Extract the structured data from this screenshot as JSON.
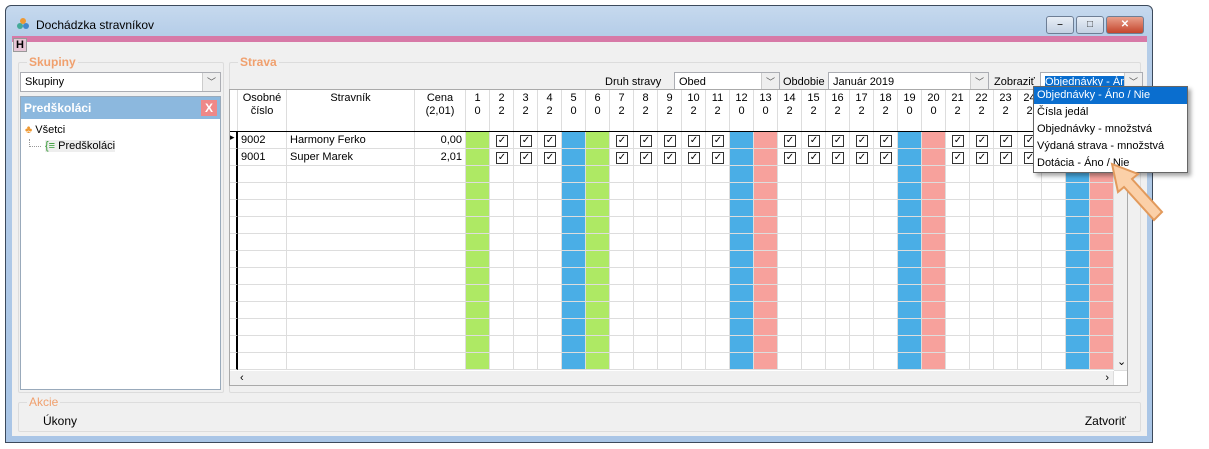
{
  "window": {
    "title": "Dochádzka stravníkov",
    "minimize": "–",
    "maximize": "□",
    "close": "✕"
  },
  "toolbar": {
    "h_button": "H"
  },
  "skupiny": {
    "legend": "Skupiny",
    "combo_value": "Skupiny",
    "panel_title": "Predškoláci",
    "panel_close": "X",
    "tree": [
      {
        "label": "Všetci",
        "icon": "group-icon"
      },
      {
        "label": "Predškoláci",
        "icon": "list-icon"
      }
    ]
  },
  "strava": {
    "legend": "Strava",
    "druh_label": "Druh stravy",
    "druh_value": "Obed",
    "obdobie_label": "Obdobie",
    "obdobie_value": "Január 2019",
    "zobrazit_label": "Zobraziť",
    "zobrazit_value": "Objednávky - Áno / Nie"
  },
  "dropdown": {
    "options": [
      "Objednávky - Áno / Nie",
      "Čísla jedál",
      "Objednávky - množstvá",
      "Výdaná strava - množstvá",
      "Dotácia - Áno / Nie"
    ],
    "selected": 0
  },
  "grid": {
    "headers": {
      "osobne": "Osobné\nčíslo",
      "stravnik": "Stravník",
      "cena": "Cena\n(2,01)"
    },
    "days": [
      {
        "d": "1",
        "n": "0",
        "c": "green"
      },
      {
        "d": "2",
        "n": "2"
      },
      {
        "d": "3",
        "n": "2"
      },
      {
        "d": "4",
        "n": "2"
      },
      {
        "d": "5",
        "n": "0",
        "c": "blue"
      },
      {
        "d": "6",
        "n": "0",
        "c": "green"
      },
      {
        "d": "7",
        "n": "2"
      },
      {
        "d": "8",
        "n": "2"
      },
      {
        "d": "9",
        "n": "2"
      },
      {
        "d": "10",
        "n": "2"
      },
      {
        "d": "11",
        "n": "2"
      },
      {
        "d": "12",
        "n": "0",
        "c": "blue"
      },
      {
        "d": "13",
        "n": "0",
        "c": "pink"
      },
      {
        "d": "14",
        "n": "2"
      },
      {
        "d": "15",
        "n": "2"
      },
      {
        "d": "16",
        "n": "2"
      },
      {
        "d": "17",
        "n": "2"
      },
      {
        "d": "18",
        "n": "2"
      },
      {
        "d": "19",
        "n": "0",
        "c": "blue"
      },
      {
        "d": "20",
        "n": "0",
        "c": "pink"
      },
      {
        "d": "21",
        "n": "2"
      },
      {
        "d": "22",
        "n": "2"
      },
      {
        "d": "23",
        "n": "2"
      },
      {
        "d": "24",
        "n": "2"
      },
      {
        "d": "",
        "n": ""
      },
      {
        "d": "",
        "n": "",
        "c": "blue"
      },
      {
        "d": "",
        "n": "",
        "c": "pink"
      }
    ],
    "rows": [
      {
        "osobne": "9002",
        "stravnik": "Harmony Ferko",
        "cena": "0,00",
        "current": true
      },
      {
        "osobne": "9001",
        "stravnik": "Super Marek",
        "cena": "2,01"
      }
    ],
    "empty_rows": 12
  },
  "colors": {
    "green": "#aee964",
    "blue": "#4aaee6",
    "pink": "#f7a19c",
    "accent_legend": "#f0a06e",
    "titlebar_pink": "#d779a7"
  },
  "akcie": {
    "legend": "Akcie",
    "ukony": "Úkony",
    "zatvorit": "Zatvoriť"
  }
}
